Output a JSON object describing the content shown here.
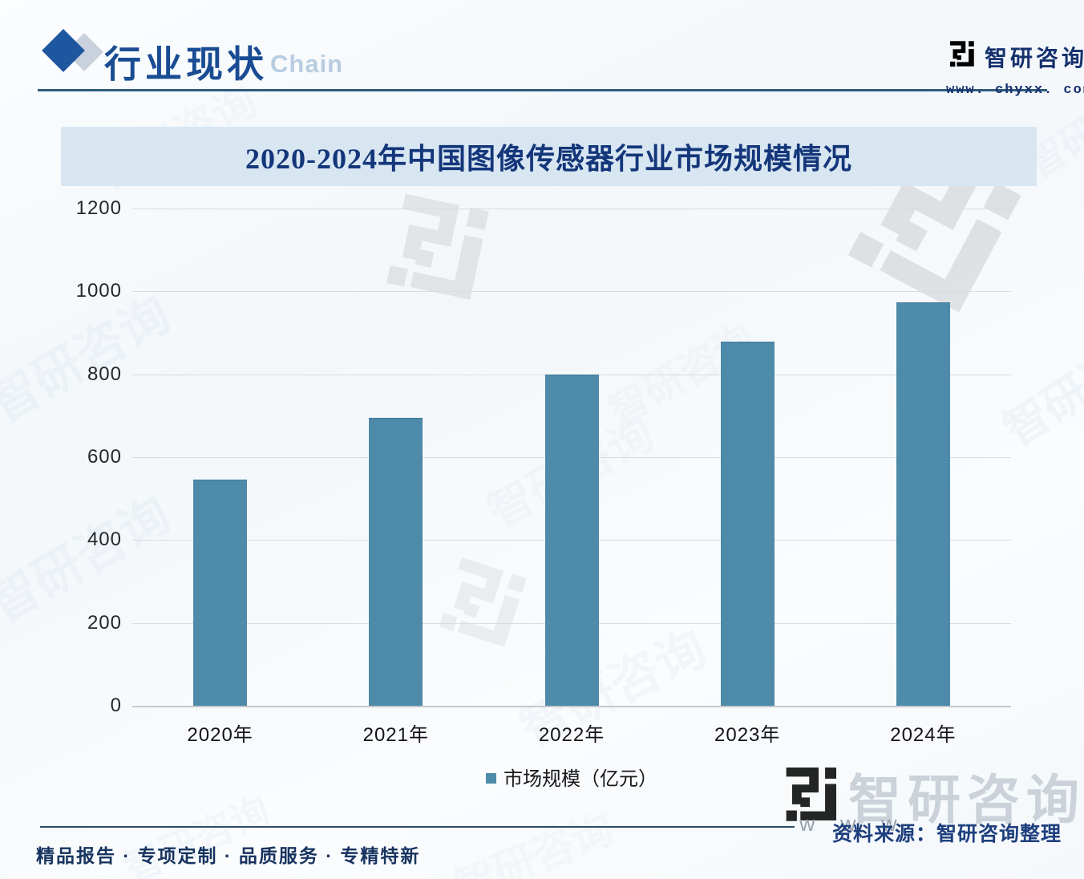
{
  "header": {
    "section_title": "行业现状",
    "watermark_suffix": "Chain",
    "brand_name": "智研咨询",
    "brand_site": "www. chyxx. com"
  },
  "banner": {
    "title": "2020-2024年中国图像传感器行业市场规模情况"
  },
  "chart_data": {
    "type": "bar",
    "title": "2020-2024年中国图像传感器行业市场规模情况",
    "categories": [
      "2020年",
      "2021年",
      "2022年",
      "2023年",
      "2024年"
    ],
    "values": [
      545,
      695,
      800,
      878,
      973
    ],
    "series_name": "市场规模（亿元）",
    "xlabel": "",
    "ylabel": "",
    "ylim": [
      0,
      1200
    ],
    "yticks": [
      0,
      200,
      400,
      600,
      800,
      1000,
      1200
    ],
    "grid": true,
    "legend_position": "bottom",
    "bar_color": "#4e8aa9"
  },
  "legend": {
    "label": "市场规模（亿元）"
  },
  "source": {
    "text": "资料来源：智研咨询整理",
    "partial_watermark": "w w w"
  },
  "footer": {
    "tagline": "精品报告 · 专项定制 · 品质服务 · 专精特新"
  },
  "watermark": {
    "brand_text": "智研咨询"
  },
  "colors": {
    "bar": "#4e8aa9",
    "accent_navy": "#1a4c94",
    "banner_bg": "#d8e6f2",
    "rule": "#2d5b7c",
    "brand_blue": "#2f86c6"
  }
}
